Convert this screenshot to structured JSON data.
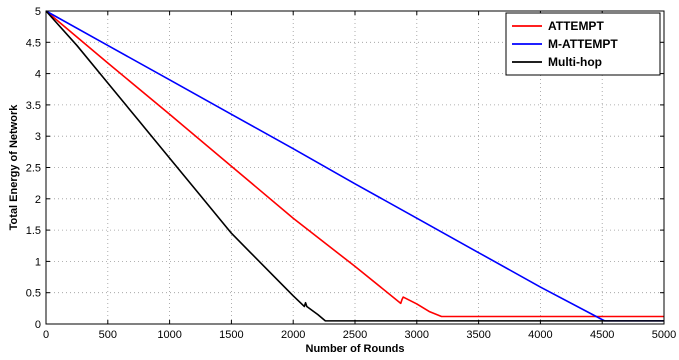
{
  "chart_data": {
    "type": "line",
    "title": "",
    "xlabel": "Number of Rounds",
    "ylabel": "Total Energy of Network",
    "xlim": [
      0,
      5000
    ],
    "ylim": [
      0,
      5
    ],
    "xticks": [
      0,
      500,
      1000,
      1500,
      2000,
      2500,
      3000,
      3500,
      4000,
      4500,
      5000
    ],
    "xtick_labels": [
      "0",
      "500",
      "1000",
      "1500",
      "2000",
      "2500",
      "3000",
      "3500",
      "4000",
      "4500",
      "5000"
    ],
    "yticks": [
      0,
      0.5,
      1,
      1.5,
      2,
      2.5,
      3,
      3.5,
      4,
      4.5,
      5
    ],
    "ytick_labels": [
      "0",
      "0.5",
      "1",
      "1.5",
      "2",
      "2.5",
      "3",
      "3.5",
      "4",
      "4.5",
      "5"
    ],
    "grid": true,
    "legend_position": "top-right",
    "series": [
      {
        "name": "ATTEMPT",
        "color": "#ff0000",
        "x": [
          0,
          500,
          1000,
          1500,
          2000,
          2500,
          2870,
          2880,
          2890,
          3000,
          3100,
          3200,
          3500,
          4000,
          4500,
          5000
        ],
        "y": [
          5,
          4.17,
          3.35,
          2.52,
          1.69,
          0.92,
          0.33,
          0.39,
          0.43,
          0.32,
          0.2,
          0.12,
          0.12,
          0.12,
          0.12,
          0.12
        ]
      },
      {
        "name": "M-ATTEMPT",
        "color": "#0000ff",
        "x": [
          0,
          500,
          1000,
          1500,
          2000,
          2500,
          3000,
          3500,
          4000,
          4500,
          4520,
          4600,
          5000
        ],
        "y": [
          5,
          4.45,
          3.9,
          3.35,
          2.8,
          2.24,
          1.69,
          1.14,
          0.59,
          0.07,
          0.05,
          0.05,
          0.05
        ]
      },
      {
        "name": "Multi-hop",
        "color": "#000000",
        "x": [
          0,
          250,
          500,
          750,
          1000,
          1250,
          1500,
          1650,
          1800,
          2000,
          2090,
          2100,
          2110,
          2200,
          2260,
          2500,
          3000,
          3500,
          4000,
          4500,
          5000
        ],
        "y": [
          5,
          4.45,
          3.85,
          3.25,
          2.65,
          2.05,
          1.45,
          1.15,
          0.85,
          0.45,
          0.28,
          0.34,
          0.28,
          0.15,
          0.05,
          0.05,
          0.05,
          0.05,
          0.05,
          0.05,
          0.05
        ]
      }
    ]
  }
}
